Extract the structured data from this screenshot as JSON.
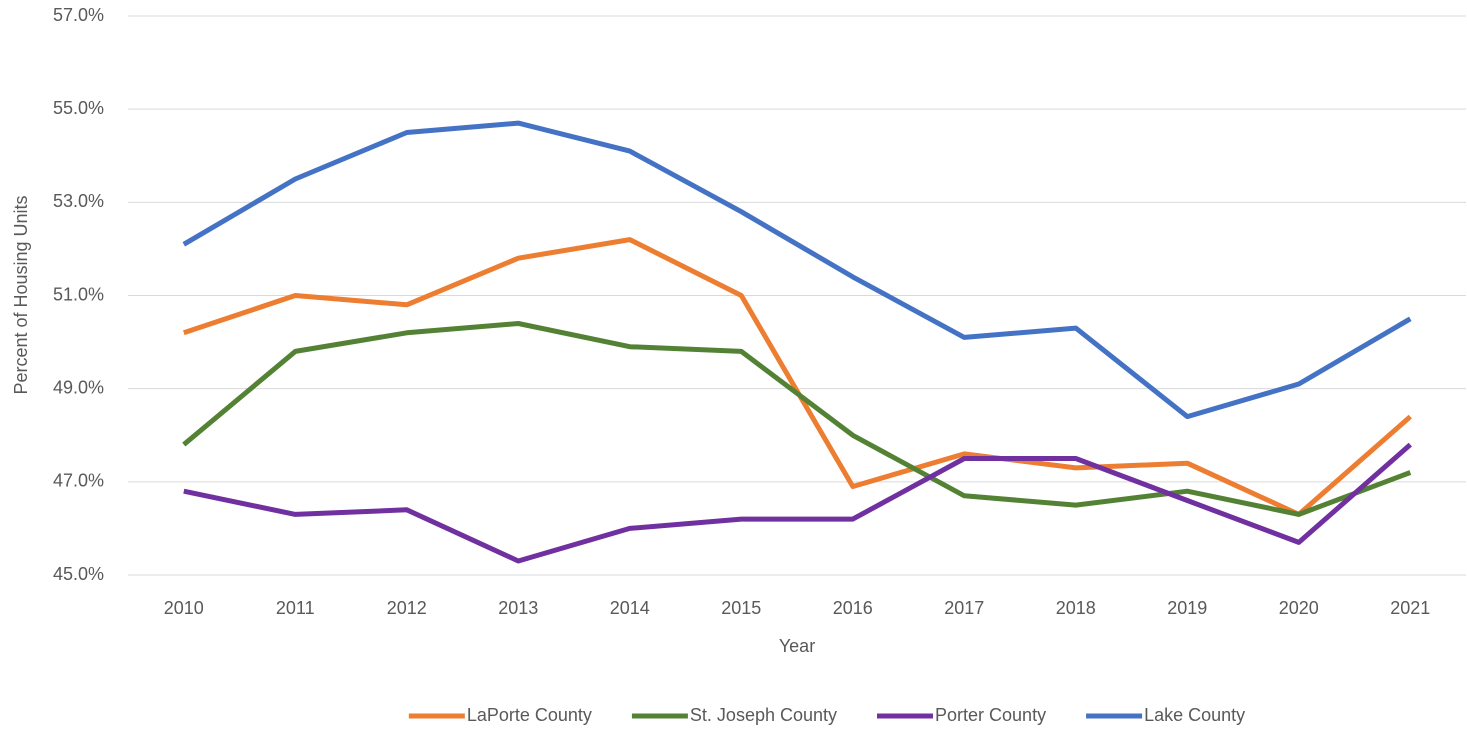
{
  "chart_data": {
    "type": "line",
    "x_label": "Year",
    "y_label": "Percent of Housing Units",
    "categories": [
      "2010",
      "2011",
      "2012",
      "2013",
      "2014",
      "2015",
      "2016",
      "2017",
      "2018",
      "2019",
      "2020",
      "2021"
    ],
    "series": [
      {
        "name": "LaPorte County",
        "color": "#ed7d31",
        "values": [
          50.2,
          51.0,
          50.8,
          51.8,
          52.2,
          51.0,
          46.9,
          47.6,
          47.3,
          47.4,
          46.3,
          48.4
        ]
      },
      {
        "name": "St. Joseph County",
        "color": "#548235",
        "values": [
          47.8,
          49.8,
          50.2,
          50.4,
          49.9,
          49.8,
          48.0,
          46.7,
          46.5,
          46.8,
          46.3,
          47.2
        ]
      },
      {
        "name": "Porter County",
        "color": "#7030a0",
        "values": [
          46.8,
          46.3,
          46.4,
          45.3,
          46.0,
          46.2,
          46.2,
          47.5,
          47.5,
          46.6,
          45.7,
          47.8
        ]
      },
      {
        "name": "Lake County",
        "color": "#4472c4",
        "values": [
          52.1,
          53.5,
          54.5,
          54.7,
          54.1,
          52.8,
          51.4,
          50.1,
          50.3,
          48.4,
          49.1,
          50.5
        ]
      }
    ],
    "ylim": [
      45,
      57
    ],
    "yticks": [
      {
        "value": 45,
        "label": "45.0%"
      },
      {
        "value": 47,
        "label": "47.0%"
      },
      {
        "value": 49,
        "label": "49.0%"
      },
      {
        "value": 51,
        "label": "51.0%"
      },
      {
        "value": 53,
        "label": "53.0%"
      },
      {
        "value": 55,
        "label": "55.0%"
      },
      {
        "value": 57,
        "label": "57.0%"
      }
    ],
    "grid": true,
    "legend": "bottom"
  }
}
